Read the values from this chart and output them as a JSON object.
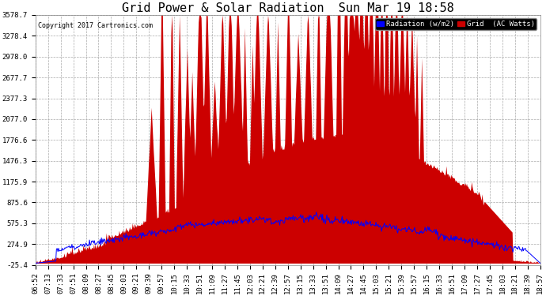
{
  "title": "Grid Power & Solar Radiation  Sun Mar 19 18:58",
  "copyright": "Copyright 2017 Cartronics.com",
  "legend_radiation": "Radiation (w/m2)",
  "legend_grid": "Grid  (AC Watts)",
  "yticks": [
    3578.7,
    3278.4,
    2978.0,
    2677.7,
    2377.3,
    2077.0,
    1776.6,
    1476.3,
    1175.9,
    875.6,
    575.3,
    274.9,
    -25.4
  ],
  "ymin": -25.4,
  "ymax": 3578.7,
  "bg_color": "#ffffff",
  "plot_bg_color": "#ffffff",
  "grid_color": "#aaaaaa",
  "radiation_color": "#0000ff",
  "grid_power_color": "#cc0000",
  "title_fontsize": 11,
  "tick_fontsize": 6.5,
  "xtick_labels": [
    "06:52",
    "07:13",
    "07:33",
    "07:51",
    "08:09",
    "08:27",
    "08:45",
    "09:03",
    "09:21",
    "09:39",
    "09:57",
    "10:15",
    "10:33",
    "10:51",
    "11:09",
    "11:27",
    "11:45",
    "12:03",
    "12:21",
    "12:39",
    "12:57",
    "13:15",
    "13:33",
    "13:51",
    "14:09",
    "14:27",
    "14:45",
    "15:03",
    "15:21",
    "15:39",
    "15:57",
    "16:15",
    "16:33",
    "16:51",
    "17:09",
    "17:27",
    "17:45",
    "18:03",
    "18:21",
    "18:39",
    "18:57"
  ]
}
